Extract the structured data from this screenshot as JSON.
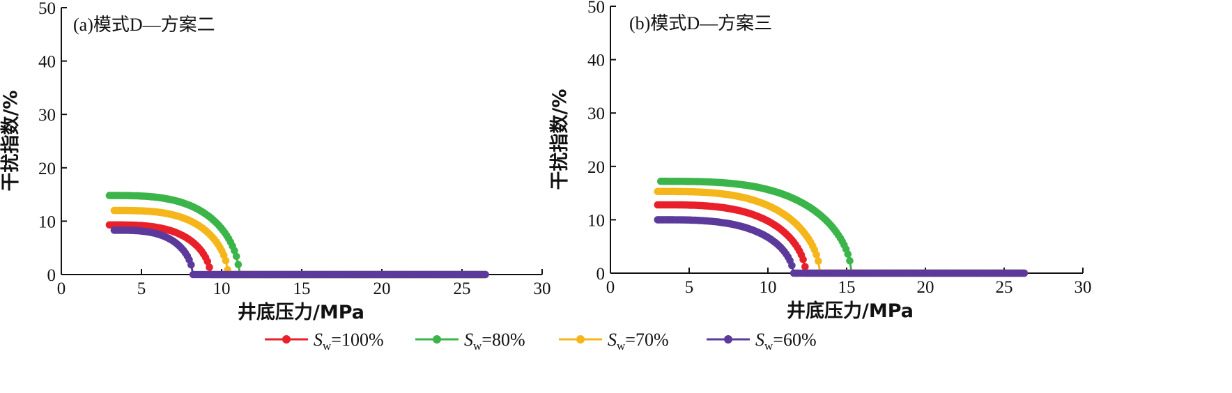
{
  "legend": [
    {
      "sym": "S",
      "sub": "w",
      "suffix": "=100%",
      "color": "#e8202a"
    },
    {
      "sym": "S",
      "sub": "w",
      "suffix": "=80%",
      "color": "#3bb54a"
    },
    {
      "sym": "S",
      "sub": "w",
      "suffix": "=70%",
      "color": "#f5b61b"
    },
    {
      "sym": "S",
      "sub": "w",
      "suffix": "=60%",
      "color": "#5b3a9b"
    }
  ],
  "chart_data": [
    {
      "type": "scatter",
      "title": "(a)模式D—方案二",
      "xlabel": "井底压力/MPa",
      "ylabel": "干扰指数/%",
      "xlim": [
        0,
        30
      ],
      "ylim": [
        0,
        50
      ],
      "xticks": [
        0,
        5,
        10,
        15,
        20,
        25,
        30
      ],
      "yticks": [
        0,
        10,
        20,
        30,
        40,
        50
      ],
      "grid": false,
      "series": [
        {
          "name": "Sw=100%",
          "color": "#e8202a",
          "x0": 3.0,
          "xz": 9.3,
          "y0": 9.3,
          "xend": 26.5
        },
        {
          "name": "Sw=80%",
          "color": "#3bb54a",
          "x0": 3.0,
          "xz": 11.1,
          "y0": 14.8,
          "xend": 26.5
        },
        {
          "name": "Sw=70%",
          "color": "#f5b61b",
          "x0": 3.3,
          "xz": 10.4,
          "y0": 12.0,
          "xend": 26.5
        },
        {
          "name": "Sw=60%",
          "color": "#5b3a9b",
          "x0": 3.3,
          "xz": 8.2,
          "y0": 8.3,
          "xend": 26.5
        }
      ]
    },
    {
      "type": "scatter",
      "title": "(b)模式D—方案三",
      "xlabel": "井底压力/MPa",
      "ylabel": "干扰指数/%",
      "xlim": [
        0,
        30
      ],
      "ylim": [
        0,
        50
      ],
      "xticks": [
        0,
        5,
        10,
        15,
        20,
        25,
        30
      ],
      "yticks": [
        0,
        10,
        20,
        30,
        40,
        50
      ],
      "grid": false,
      "series": [
        {
          "name": "Sw=100%",
          "color": "#e8202a",
          "x0": 3.0,
          "xz": 12.4,
          "y0": 12.8,
          "xend": 26.3
        },
        {
          "name": "Sw=80%",
          "color": "#3bb54a",
          "x0": 3.2,
          "xz": 15.3,
          "y0": 17.2,
          "xend": 26.3
        },
        {
          "name": "Sw=70%",
          "color": "#f5b61b",
          "x0": 3.0,
          "xz": 13.3,
          "y0": 15.3,
          "xend": 26.3
        },
        {
          "name": "Sw=60%",
          "color": "#5b3a9b",
          "x0": 3.0,
          "xz": 11.6,
          "y0": 10.0,
          "xend": 26.3
        }
      ]
    }
  ]
}
